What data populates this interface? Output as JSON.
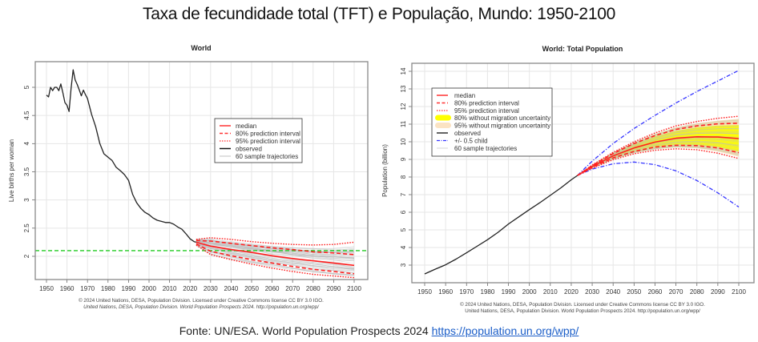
{
  "page": {
    "title": "Taxa de fecundidade total (TFT) e População, Mundo: 1950-2100",
    "footer_text": "Fonte: UN/ESA. World Population Prospects 2024 ",
    "footer_link": "https://population.un.org/wpp/"
  },
  "chart_data": [
    {
      "type": "line",
      "title": "World",
      "xlabel": "",
      "ylabel": "Live births per woman",
      "xlim": [
        1945,
        2105
      ],
      "ylim": [
        1.6,
        5.4
      ],
      "xticks": [
        1950,
        1960,
        1970,
        1980,
        1990,
        2000,
        2010,
        2020,
        2030,
        2040,
        2050,
        2060,
        2070,
        2080,
        2090,
        2100
      ],
      "yticks": [
        2,
        2.5,
        3,
        3.5,
        4,
        4.5,
        5
      ],
      "ytick_labels": [
        "2",
        "2.5",
        "3",
        "3.5",
        "4",
        "4.5",
        "5"
      ],
      "grid": true,
      "legend_position": "center-right",
      "legend": [
        "median",
        "80% prediction interval",
        "95% prediction interval",
        "observed",
        "60 sample trajectories"
      ],
      "reference_line": {
        "name": "replacement level",
        "y": 2.1,
        "color": "#22cc22"
      },
      "series": [
        {
          "name": "observed",
          "color": "#222222",
          "x": [
            1950,
            1951,
            1952,
            1953,
            1954,
            1955,
            1956,
            1957,
            1958,
            1959,
            1960,
            1961,
            1962,
            1963,
            1964,
            1965,
            1966,
            1967,
            1968,
            1969,
            1970,
            1972,
            1974,
            1976,
            1978,
            1980,
            1982,
            1984,
            1986,
            1988,
            1990,
            1992,
            1994,
            1996,
            1998,
            2000,
            2002,
            2004,
            2006,
            2008,
            2010,
            2012,
            2014,
            2016,
            2018,
            2020,
            2022,
            2023
          ],
          "y": [
            4.86,
            4.83,
            5.0,
            4.94,
            5.0,
            5.0,
            4.94,
            5.06,
            4.9,
            4.73,
            4.68,
            4.57,
            4.98,
            5.31,
            5.13,
            5.05,
            4.95,
            4.85,
            4.95,
            4.87,
            4.8,
            4.52,
            4.3,
            4.0,
            3.82,
            3.76,
            3.7,
            3.58,
            3.52,
            3.45,
            3.35,
            3.1,
            2.95,
            2.85,
            2.78,
            2.74,
            2.68,
            2.64,
            2.62,
            2.6,
            2.6,
            2.57,
            2.52,
            2.48,
            2.4,
            2.31,
            2.26,
            2.25
          ]
        },
        {
          "name": "median",
          "color": "#ff2222",
          "x": [
            2023,
            2030,
            2040,
            2050,
            2060,
            2070,
            2080,
            2090,
            2100
          ],
          "y": [
            2.25,
            2.18,
            2.12,
            2.07,
            2.01,
            1.96,
            1.92,
            1.88,
            1.84
          ]
        },
        {
          "name": "80% prediction interval (upper)",
          "color": "#ff2222",
          "x": [
            2023,
            2030,
            2040,
            2050,
            2060,
            2070,
            2080,
            2090,
            2100
          ],
          "y": [
            2.28,
            2.27,
            2.23,
            2.19,
            2.15,
            2.12,
            2.08,
            2.06,
            2.03
          ]
        },
        {
          "name": "80% prediction interval (lower)",
          "color": "#ff2222",
          "x": [
            2023,
            2030,
            2040,
            2050,
            2060,
            2070,
            2080,
            2090,
            2100
          ],
          "y": [
            2.22,
            2.09,
            2.01,
            1.94,
            1.88,
            1.82,
            1.77,
            1.73,
            1.69
          ]
        },
        {
          "name": "95% prediction interval (upper)",
          "color": "#ff2222",
          "x": [
            2023,
            2030,
            2040,
            2050,
            2060,
            2070,
            2080,
            2090,
            2100
          ],
          "y": [
            2.3,
            2.33,
            2.3,
            2.26,
            2.23,
            2.21,
            2.2,
            2.21,
            2.25
          ]
        },
        {
          "name": "95% prediction interval (lower)",
          "color": "#ff2222",
          "x": [
            2023,
            2030,
            2040,
            2050,
            2060,
            2070,
            2080,
            2090,
            2100
          ],
          "y": [
            2.2,
            2.03,
            1.94,
            1.86,
            1.79,
            1.73,
            1.68,
            1.65,
            1.62
          ]
        }
      ],
      "credit_lines": [
        "© 2024 United Nations, DESA, Population Division. Licensed under Creative Commons license CC BY 3.0 IGO.",
        "United Nations, DESA, Population Division. World Population Prospects 2024. http://population.un.org/wpp/"
      ]
    },
    {
      "type": "line",
      "title": "World: Total Population",
      "xlabel": "",
      "ylabel": "Population (billion)",
      "xlim": [
        1944,
        2108
      ],
      "ylim": [
        2.0,
        14.5
      ],
      "xticks": [
        1950,
        1960,
        1970,
        1980,
        1990,
        2000,
        2010,
        2020,
        2030,
        2040,
        2050,
        2060,
        2070,
        2080,
        2090,
        2100
      ],
      "yticks": [
        3,
        4,
        5,
        6,
        7,
        8,
        9,
        10,
        11,
        12,
        13,
        14
      ],
      "ytick_labels": [
        "3",
        "4",
        "5",
        "6",
        "7",
        "8",
        "9",
        "10",
        "11",
        "12",
        "13",
        "14"
      ],
      "grid": true,
      "legend_position": "top-left",
      "legend": [
        "median",
        "80% prediction interval",
        "95% prediction interval",
        "80% without migration uncertainty",
        "95% without migration uncertainty",
        "observed",
        "+/- 0.5 child",
        "60 sample trajectories"
      ],
      "series": [
        {
          "name": "observed",
          "color": "#222222",
          "x": [
            1950,
            1955,
            1960,
            1965,
            1970,
            1975,
            1980,
            1985,
            1990,
            1995,
            2000,
            2005,
            2010,
            2015,
            2020,
            2023
          ],
          "y": [
            2.5,
            2.77,
            3.02,
            3.34,
            3.7,
            4.07,
            4.44,
            4.86,
            5.33,
            5.74,
            6.15,
            6.54,
            6.96,
            7.38,
            7.84,
            8.09
          ]
        },
        {
          "name": "median",
          "color": "#ff2222",
          "x": [
            2023,
            2030,
            2040,
            2050,
            2060,
            2070,
            2080,
            2090,
            2100
          ],
          "y": [
            8.09,
            8.6,
            9.2,
            9.65,
            9.98,
            10.2,
            10.28,
            10.27,
            10.18
          ]
        },
        {
          "name": "80% prediction interval (upper)",
          "color": "#ff2222",
          "x": [
            2023,
            2030,
            2040,
            2050,
            2060,
            2070,
            2080,
            2090,
            2100
          ],
          "y": [
            8.09,
            8.65,
            9.33,
            9.9,
            10.35,
            10.7,
            10.9,
            11.02,
            11.05
          ]
        },
        {
          "name": "80% prediction interval (lower)",
          "color": "#ff2222",
          "x": [
            2023,
            2030,
            2040,
            2050,
            2060,
            2070,
            2080,
            2090,
            2100
          ],
          "y": [
            8.09,
            8.55,
            9.08,
            9.45,
            9.7,
            9.8,
            9.78,
            9.65,
            9.38
          ]
        },
        {
          "name": "95% prediction interval (upper)",
          "color": "#ff2222",
          "x": [
            2023,
            2030,
            2040,
            2050,
            2060,
            2070,
            2080,
            2090,
            2100
          ],
          "y": [
            8.09,
            8.68,
            9.4,
            10.0,
            10.5,
            10.9,
            11.15,
            11.33,
            11.45
          ]
        },
        {
          "name": "95% prediction interval (lower)",
          "color": "#ff2222",
          "x": [
            2023,
            2030,
            2040,
            2050,
            2060,
            2070,
            2080,
            2090,
            2100
          ],
          "y": [
            8.09,
            8.5,
            8.98,
            9.32,
            9.52,
            9.6,
            9.55,
            9.35,
            9.05
          ]
        },
        {
          "name": "+0.5 child",
          "color": "#3333ff",
          "x": [
            2023,
            2030,
            2040,
            2050,
            2060,
            2070,
            2080,
            2090,
            2100
          ],
          "y": [
            8.09,
            8.9,
            9.9,
            10.75,
            11.5,
            12.2,
            12.85,
            13.45,
            14.05
          ]
        },
        {
          "name": "-0.5 child",
          "color": "#3333ff",
          "x": [
            2023,
            2030,
            2040,
            2050,
            2060,
            2070,
            2080,
            2090,
            2100
          ],
          "y": [
            8.09,
            8.45,
            8.75,
            8.85,
            8.7,
            8.35,
            7.8,
            7.1,
            6.3
          ]
        }
      ],
      "bands": [
        {
          "name": "80% without migration uncertainty",
          "color": "#ffff00",
          "x": [
            2023,
            2030,
            2040,
            2050,
            2060,
            2070,
            2080,
            2090,
            2100
          ],
          "upper": [
            8.09,
            8.63,
            9.3,
            9.85,
            10.3,
            10.62,
            10.82,
            10.92,
            10.95
          ],
          "lower": [
            8.09,
            8.57,
            9.1,
            9.48,
            9.72,
            9.84,
            9.82,
            9.7,
            9.45
          ]
        },
        {
          "name": "95% without migration uncertainty",
          "color": "#fbe3c3",
          "x": [
            2023,
            2030,
            2040,
            2050,
            2060,
            2070,
            2080,
            2090,
            2100
          ],
          "upper": [
            8.09,
            8.66,
            9.37,
            9.95,
            10.45,
            10.82,
            11.05,
            11.2,
            11.3
          ],
          "lower": [
            8.09,
            8.52,
            9.02,
            9.38,
            9.58,
            9.68,
            9.63,
            9.45,
            9.15
          ]
        }
      ],
      "credit_lines": [
        "© 2024 United Nations, DESA, Population Division. Licensed under Creative Commons license CC BY 3.0 IGO.",
        "United Nations, DESA, Population Division. World Population Prospects 2024. http://population.un.org/wpp/"
      ]
    }
  ]
}
